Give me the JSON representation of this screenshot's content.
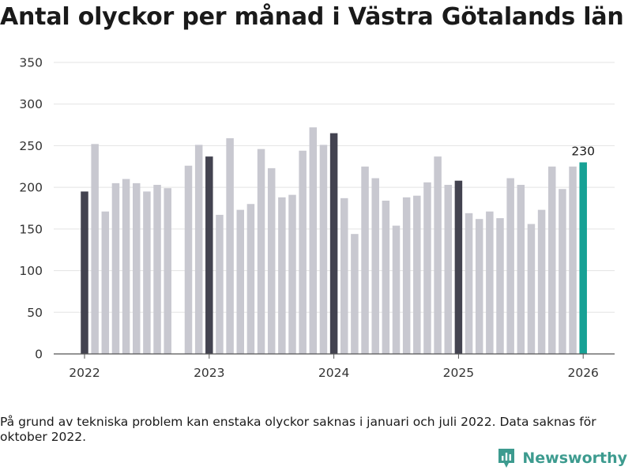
{
  "title": "Antal olyckor per månad i Västra Götalands län",
  "note": "På grund av tekniska problem kan enstaka olyckor saknas i januari och juli 2022. Data saknas för oktober 2022.",
  "brand": {
    "name": "Newsworthy",
    "icon": "newsworthy-logo-icon"
  },
  "colors": {
    "january": "#434350",
    "regular": "#c8c8d0",
    "latest": "#17a195",
    "grid": "#e3e3e3",
    "axis": "#555555"
  },
  "chart_data": {
    "type": "bar",
    "title": "Antal olyckor per månad i Västra Götalands län",
    "xlabel": "",
    "ylabel": "",
    "ylim": [
      0,
      350
    ],
    "yticks": [
      "0",
      "50",
      "100",
      "150",
      "200",
      "250",
      "300",
      "350"
    ],
    "xticks": [
      {
        "label": "2022",
        "index": 0
      },
      {
        "label": "2023",
        "index": 12
      },
      {
        "label": "2024",
        "index": 24
      },
      {
        "label": "2025",
        "index": 36
      },
      {
        "label": "2026",
        "index": 48
      }
    ],
    "categories": [
      "2022-01",
      "2022-02",
      "2022-03",
      "2022-04",
      "2022-05",
      "2022-06",
      "2022-07",
      "2022-08",
      "2022-09",
      "2022-10",
      "2022-11",
      "2022-12",
      "2023-01",
      "2023-02",
      "2023-03",
      "2023-04",
      "2023-05",
      "2023-06",
      "2023-07",
      "2023-08",
      "2023-09",
      "2023-10",
      "2023-11",
      "2023-12",
      "2024-01",
      "2024-02",
      "2024-03",
      "2024-04",
      "2024-05",
      "2024-06",
      "2024-07",
      "2024-08",
      "2024-09",
      "2024-10",
      "2024-11",
      "2024-12",
      "2025-01",
      "2025-02",
      "2025-03",
      "2025-04",
      "2025-05",
      "2025-06",
      "2025-07",
      "2025-08",
      "2025-09",
      "2025-10",
      "2025-11",
      "2025-12",
      "2026-01"
    ],
    "values": [
      195,
      252,
      171,
      205,
      210,
      205,
      195,
      203,
      199,
      null,
      226,
      251,
      237,
      167,
      259,
      173,
      180,
      246,
      223,
      188,
      191,
      244,
      272,
      251,
      265,
      187,
      144,
      225,
      211,
      184,
      154,
      188,
      190,
      206,
      237,
      203,
      208,
      169,
      162,
      171,
      163,
      211,
      203,
      156,
      173,
      225,
      198,
      225,
      230
    ],
    "highlight_label": {
      "index": 48,
      "text": "230"
    }
  }
}
